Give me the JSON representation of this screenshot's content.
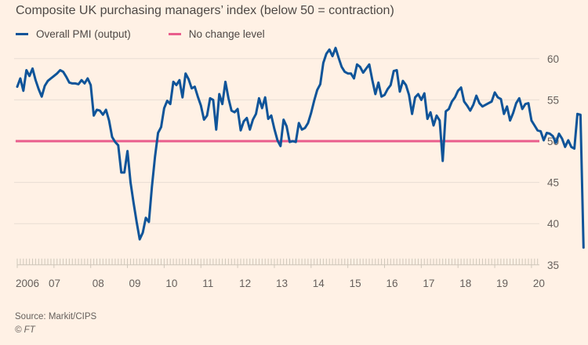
{
  "title": "Composite UK purchasing managers’ index (below 50 = contraction)",
  "legend": [
    {
      "label": "Overall PMI (output)",
      "color": "#0f5499"
    },
    {
      "label": "No change level",
      "color": "#e95d8c"
    }
  ],
  "footer": {
    "source": "Source: Markit/CIPS",
    "copyright": "© FT"
  },
  "chart_data": {
    "type": "line",
    "title": "Composite UK purchasing managers’ index (below 50 = contraction)",
    "xlabel": "",
    "ylabel": "",
    "ylim": [
      35,
      62
    ],
    "yticks": [
      35,
      40,
      45,
      50,
      55,
      60
    ],
    "x_start": "2006-01",
    "x_frequency": "monthly",
    "xtick_labels": [
      "2006",
      "07",
      "08",
      "09",
      "10",
      "11",
      "12",
      "13",
      "14",
      "15",
      "16",
      "17",
      "18",
      "19",
      "20"
    ],
    "grid": true,
    "legend_position": "top-left",
    "y_axis_side": "right",
    "series": [
      {
        "name": "Overall PMI (output)",
        "color": "#0f5499",
        "values": [
          56.6,
          57.6,
          56.1,
          58.6,
          57.9,
          58.8,
          57.4,
          56.3,
          55.4,
          56.7,
          57.3,
          57.6,
          57.9,
          58.2,
          58.6,
          58.4,
          57.8,
          57.1,
          57.0,
          57.0,
          56.9,
          57.4,
          57.0,
          57.6,
          56.8,
          53.1,
          53.8,
          53.7,
          53.2,
          53.8,
          52.5,
          50.5,
          49.9,
          49.5,
          46.2,
          46.2,
          48.8,
          45.0,
          42.5,
          40.2,
          38.1,
          38.9,
          40.7,
          40.2,
          44.5,
          48.1,
          51.0,
          51.7,
          54.0,
          54.9,
          54.5,
          57.2,
          56.8,
          57.4,
          55.3,
          58.2,
          57.5,
          56.4,
          56.6,
          55.4,
          54.3,
          52.6,
          53.1,
          55.2,
          55.0,
          51.4,
          55.7,
          54.5,
          57.2,
          55.2,
          53.7,
          53.5,
          53.9,
          51.3,
          52.4,
          52.8,
          51.4,
          52.6,
          53.3,
          55.2,
          54.0,
          55.3,
          52.7,
          53.1,
          51.5,
          50.1,
          49.4,
          52.6,
          51.8,
          49.9,
          50.0,
          49.9,
          52.2,
          51.4,
          51.6,
          52.2,
          53.4,
          54.9,
          56.2,
          56.9,
          59.5,
          60.6,
          61.1,
          60.3,
          61.3,
          60.1,
          59.0,
          58.4,
          58.2,
          58.2,
          57.6,
          59.3,
          59.0,
          58.3,
          58.8,
          59.3,
          57.4,
          55.7,
          57.1,
          55.4,
          55.6,
          56.3,
          56.8,
          58.5,
          58.6,
          56.0,
          57.3,
          56.8,
          55.6,
          53.3,
          55.3,
          55.7,
          55.0,
          55.8,
          52.7,
          53.5,
          51.9,
          53.1,
          52.5,
          47.6,
          53.6,
          53.9,
          54.8,
          55.3,
          56.1,
          56.5,
          54.8,
          54.3,
          53.7,
          54.4,
          55.5,
          54.6,
          54.2,
          54.4,
          54.6,
          54.8,
          55.9,
          55.3,
          55.1,
          53.3,
          54.2,
          52.5,
          53.4,
          54.6,
          55.2,
          53.9,
          54.5,
          54.6,
          52.5,
          51.9,
          51.3,
          51.2,
          50.1,
          51.0,
          50.9,
          50.6,
          49.8,
          50.9,
          50.3,
          49.3,
          50.1,
          49.3,
          49.1,
          53.3,
          53.2,
          37.1
        ]
      },
      {
        "name": "No change level",
        "color": "#e95d8c",
        "constant": 50
      }
    ]
  }
}
